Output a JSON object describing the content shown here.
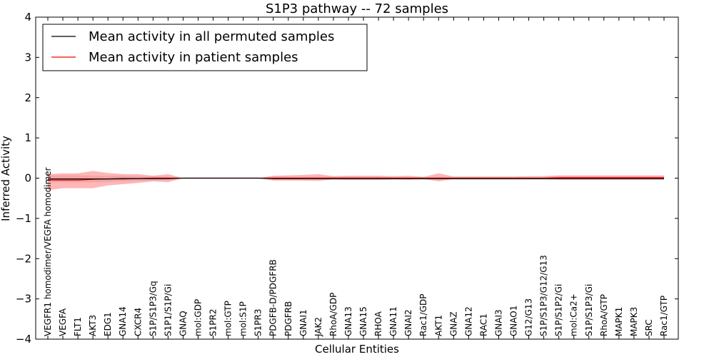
{
  "chart_data": {
    "type": "line",
    "title": "S1P3 pathway -- 72 samples",
    "xlabel": "Cellular Entities",
    "ylabel": "Inferred Activity",
    "ylim": [
      -4,
      4
    ],
    "yticks": [
      "4",
      "3",
      "2",
      "1",
      "0",
      "−1",
      "−2",
      "−3",
      "−4"
    ],
    "ytick_values": [
      4,
      3,
      2,
      1,
      0,
      -1,
      -2,
      -3,
      -4
    ],
    "legend_position": "top-left",
    "categories": [
      "VEGFR1 homodimer/VEGFA homodimer",
      "VEGFA",
      "FLT1",
      "AKT3",
      "EDG1",
      "GNA14",
      "CXCR4",
      "S1P/S1P3/Gq",
      "S1P1/S1P/Gi",
      "GNAQ",
      "mol:GDP",
      "S1PR2",
      "mol:GTP",
      "mol:S1P",
      "S1PR3",
      "PDGFB-D/PDGFRB",
      "PDGFRB",
      "GNAI1",
      "JAK2",
      "RhoA/GDP",
      "GNA13",
      "GNA15",
      "RHOA",
      "GNA11",
      "GNAI2",
      "Rac1/GDP",
      "AKT1",
      "GNAZ",
      "GNA12",
      "RAC1",
      "GNAI3",
      "GNAO1",
      "G12/G13",
      "S1P/S1P3/G12/G13",
      "S1P/S1P2/Gi",
      "mol:Ca2+",
      "S1P/S1P3/Gi",
      "RhoA/GTP",
      "MAPK1",
      "MAPK3",
      "SRC",
      "Rac1/GTP"
    ],
    "series": [
      {
        "name": "Mean activity in all permuted samples",
        "color": "#000000",
        "band_color": "#9a9a9a",
        "values": [
          -0.02,
          -0.02,
          -0.02,
          -0.02,
          -0.02,
          -0.01,
          -0.01,
          -0.01,
          -0.01,
          0,
          0,
          0,
          0,
          0,
          0,
          -0.01,
          -0.01,
          -0.01,
          -0.01,
          -0.01,
          -0.01,
          -0.01,
          -0.01,
          -0.01,
          -0.01,
          -0.01,
          -0.01,
          -0.01,
          -0.01,
          -0.01,
          -0.01,
          -0.01,
          -0.01,
          -0.01,
          -0.01,
          -0.01,
          -0.01,
          -0.01,
          -0.01,
          -0.01,
          -0.01,
          -0.01
        ],
        "lower": [
          -0.1,
          -0.1,
          -0.1,
          -0.1,
          -0.09,
          -0.08,
          -0.07,
          -0.06,
          -0.05,
          0,
          0,
          0,
          0,
          0,
          0,
          -0.05,
          -0.05,
          -0.05,
          -0.05,
          -0.05,
          -0.05,
          -0.05,
          -0.05,
          -0.04,
          -0.04,
          -0.04,
          -0.04,
          -0.04,
          -0.04,
          -0.04,
          -0.04,
          -0.04,
          -0.04,
          -0.04,
          -0.05,
          -0.05,
          -0.05,
          -0.05,
          -0.05,
          -0.05,
          -0.05,
          -0.05
        ],
        "upper": [
          0.07,
          0.07,
          0.07,
          0.06,
          0.06,
          0.06,
          0.05,
          0.05,
          0.04,
          0,
          0,
          0,
          0,
          0,
          0,
          0.04,
          0.04,
          0.04,
          0.04,
          0.04,
          0.04,
          0.04,
          0.04,
          0.03,
          0.03,
          0.03,
          0.03,
          0.03,
          0.03,
          0.03,
          0.03,
          0.03,
          0.03,
          0.03,
          0.04,
          0.04,
          0.04,
          0.04,
          0.04,
          0.04,
          0.04,
          0.04
        ]
      },
      {
        "name": "Mean activity in patient samples",
        "color": "#ff0000",
        "band_color": "#ff7a7a",
        "values": [
          -0.05,
          -0.05,
          -0.05,
          -0.03,
          -0.02,
          -0.02,
          -0.01,
          0,
          0,
          0,
          0,
          0,
          0,
          0,
          0,
          0,
          0,
          0,
          0,
          0,
          0,
          0,
          0,
          0,
          0,
          0,
          0,
          0,
          0,
          0,
          0,
          0,
          0,
          0,
          0.01,
          0.01,
          0.01,
          0.01,
          0.01,
          0.01,
          0.01,
          0.01
        ],
        "lower": [
          -0.3,
          -0.25,
          -0.25,
          -0.25,
          -0.18,
          -0.15,
          -0.12,
          -0.08,
          -0.1,
          0,
          0,
          0,
          0,
          0,
          0,
          -0.06,
          -0.06,
          -0.06,
          -0.07,
          -0.03,
          -0.04,
          -0.04,
          -0.04,
          -0.03,
          -0.04,
          -0.02,
          -0.08,
          -0.02,
          -0.02,
          -0.02,
          -0.02,
          -0.02,
          -0.02,
          -0.02,
          -0.03,
          -0.03,
          -0.03,
          -0.03,
          -0.03,
          -0.03,
          -0.03,
          -0.03
        ],
        "upper": [
          0.1,
          0.12,
          0.12,
          0.18,
          0.13,
          0.1,
          0.1,
          0.06,
          0.1,
          0,
          0,
          0,
          0,
          0,
          0,
          0.06,
          0.07,
          0.08,
          0.1,
          0.05,
          0.06,
          0.06,
          0.06,
          0.05,
          0.06,
          0.03,
          0.12,
          0.04,
          0.04,
          0.04,
          0.04,
          0.04,
          0.05,
          0.05,
          0.07,
          0.07,
          0.07,
          0.07,
          0.07,
          0.07,
          0.07,
          0.07
        ]
      }
    ]
  }
}
